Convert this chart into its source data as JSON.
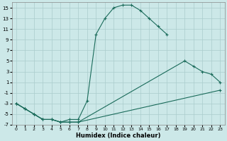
{
  "xlabel": "Humidex (Indice chaleur)",
  "xlim": [
    -0.5,
    23.5
  ],
  "ylim": [
    -7,
    16
  ],
  "xticks": [
    0,
    1,
    2,
    3,
    4,
    5,
    6,
    7,
    8,
    9,
    10,
    11,
    12,
    13,
    14,
    15,
    16,
    17,
    18,
    19,
    20,
    21,
    22,
    23
  ],
  "yticks": [
    -7,
    -5,
    -3,
    -1,
    1,
    3,
    5,
    7,
    9,
    11,
    13,
    15
  ],
  "bg_color": "#cce8e8",
  "line_color": "#1a6b5a",
  "grid_color": "#aacccc",
  "line1_x": [
    0,
    1,
    2,
    3,
    4,
    5,
    6,
    7,
    8,
    9,
    10,
    11,
    12,
    13,
    14,
    15,
    16,
    17
  ],
  "line1_y": [
    -3,
    -4,
    -5,
    -6,
    -6,
    -6.5,
    -6,
    -6,
    -2.5,
    10,
    13,
    15,
    15.5,
    15.5,
    14.5,
    13,
    11.5,
    10
  ],
  "line2_x": [
    0,
    1,
    2,
    3,
    4,
    5,
    6,
    7,
    19,
    20,
    21,
    22,
    23
  ],
  "line2_y": [
    -3,
    -4,
    -5,
    -6,
    -6,
    -6.5,
    -6.5,
    -6.5,
    5,
    4,
    3,
    2.5,
    1
  ],
  "line3_x": [
    0,
    1,
    2,
    3,
    4,
    5,
    6,
    7,
    23
  ],
  "line3_y": [
    -3,
    -4,
    -5,
    -6,
    -6,
    -6.5,
    -6.5,
    -6.5,
    -0.5
  ]
}
